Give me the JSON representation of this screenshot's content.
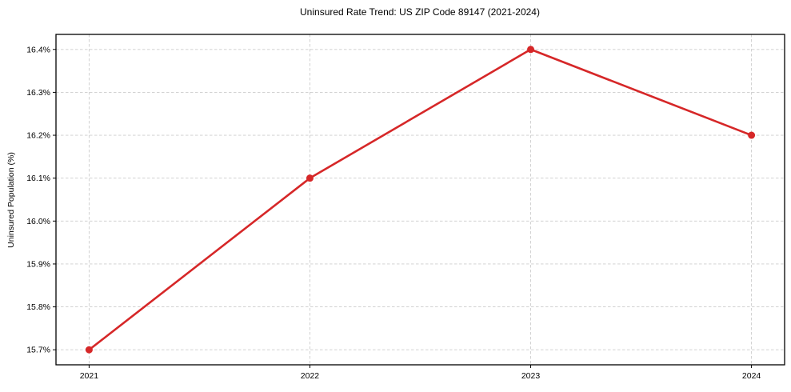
{
  "chart_data": {
    "type": "line",
    "title": "Uninsured Rate Trend: US ZIP Code 89147 (2021-2024)",
    "xlabel": "",
    "ylabel": "Uninsured Population (%)",
    "x": [
      2021,
      2022,
      2023,
      2024
    ],
    "x_tick_labels": [
      "2021",
      "2022",
      "2023",
      "2024"
    ],
    "values": [
      15.7,
      16.1,
      16.4,
      16.2
    ],
    "y_ticks": [
      15.7,
      15.8,
      15.9,
      16.0,
      16.1,
      16.2,
      16.3,
      16.4
    ],
    "y_tick_labels": [
      "15.7%",
      "15.8%",
      "15.9%",
      "16.0%",
      "16.1%",
      "16.2%",
      "16.3%",
      "16.4%"
    ],
    "xlim": [
      2020.85,
      2024.15
    ],
    "ylim": [
      15.665,
      16.435
    ],
    "grid": true,
    "legend": "none",
    "line_color": "#d62728",
    "marker": "circle",
    "grid_color": "#cccccc",
    "axis_color": "#000000"
  }
}
